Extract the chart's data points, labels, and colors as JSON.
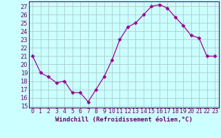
{
  "x": [
    0,
    1,
    2,
    3,
    4,
    5,
    6,
    7,
    8,
    9,
    10,
    11,
    12,
    13,
    14,
    15,
    16,
    17,
    18,
    19,
    20,
    21,
    22,
    23
  ],
  "y": [
    21,
    19,
    18.5,
    17.8,
    18,
    16.6,
    16.6,
    15.5,
    17,
    18.5,
    20.5,
    23,
    24.5,
    25,
    26,
    27,
    27.2,
    26.8,
    25.7,
    24.7,
    23.5,
    23.2,
    21,
    21
  ],
  "line_color": "#990099",
  "marker": "D",
  "marker_size": 2.5,
  "bg_color": "#ccffff",
  "grid_color": "#aacccc",
  "xlabel": "Windchill (Refroidissement éolien,°C)",
  "ylabel_ticks": [
    15,
    16,
    17,
    18,
    19,
    20,
    21,
    22,
    23,
    24,
    25,
    26,
    27
  ],
  "ylim": [
    14.8,
    27.6
  ],
  "xlim": [
    -0.5,
    23.5
  ],
  "xlabel_fontsize": 6.5,
  "tick_fontsize": 6.0,
  "title": ""
}
